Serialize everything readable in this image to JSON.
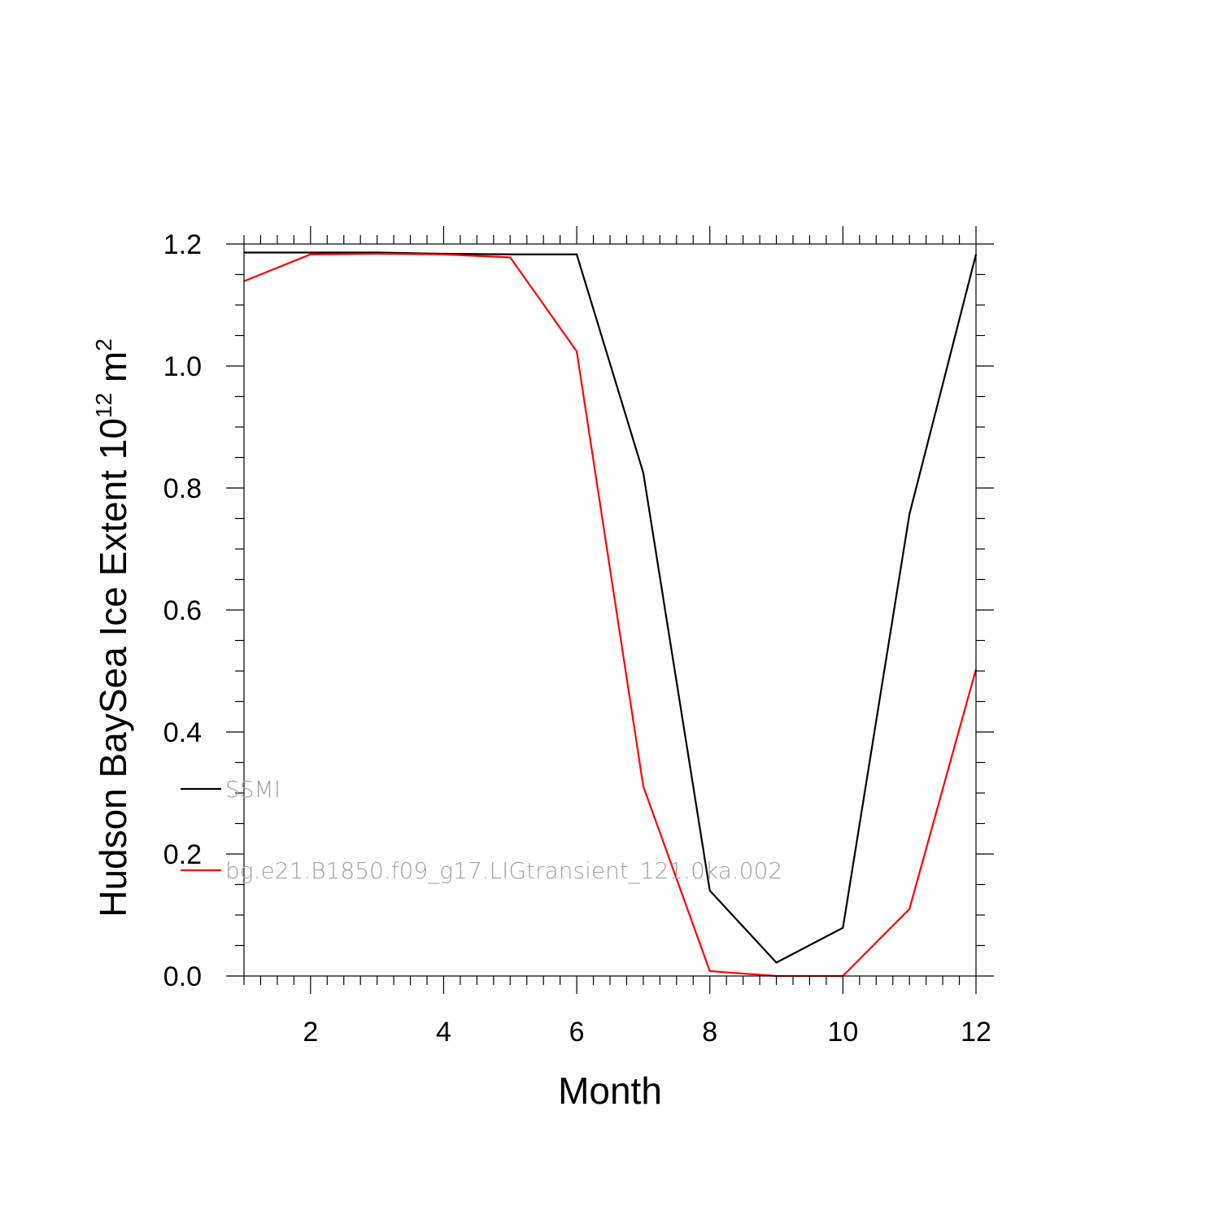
{
  "chart_data": {
    "type": "line",
    "title": "",
    "xlabel": "Month",
    "ylabel": {
      "main": "Hudson BaySea Ice Extent 10",
      "superscript": "12",
      "unit": " m",
      "unit_superscript": "2"
    },
    "xlim": [
      1,
      12
    ],
    "ylim": [
      0.0,
      1.2
    ],
    "x_ticks": [
      2,
      4,
      6,
      8,
      10,
      12
    ],
    "x_tick_labels": [
      "2",
      "4",
      "6",
      "8",
      "10",
      "12"
    ],
    "y_ticks": [
      0.0,
      0.2,
      0.4,
      0.6,
      0.8,
      1.0,
      1.2
    ],
    "y_tick_labels": [
      "0.0",
      "0.2",
      "0.4",
      "0.6",
      "0.8",
      "1.0",
      "1.2"
    ],
    "grid": false,
    "legend_placement": "lower-left inside",
    "x": [
      1,
      2,
      3,
      4,
      5,
      6,
      7,
      8,
      9,
      10,
      11,
      12
    ],
    "series": [
      {
        "name": "SSMI",
        "color": "#000000",
        "values": [
          1.186,
          1.186,
          1.186,
          1.184,
          1.183,
          1.183,
          0.825,
          0.14,
          0.022,
          0.079,
          0.757,
          1.183
        ]
      },
      {
        "name": "bg.e21.B1850.f09_g17.LIGtransient_121.0ka.002",
        "color": "#ff0000",
        "values": [
          1.139,
          1.183,
          1.184,
          1.183,
          1.178,
          1.024,
          0.311,
          0.008,
          0.0,
          0.0,
          0.11,
          0.503
        ]
      }
    ]
  }
}
